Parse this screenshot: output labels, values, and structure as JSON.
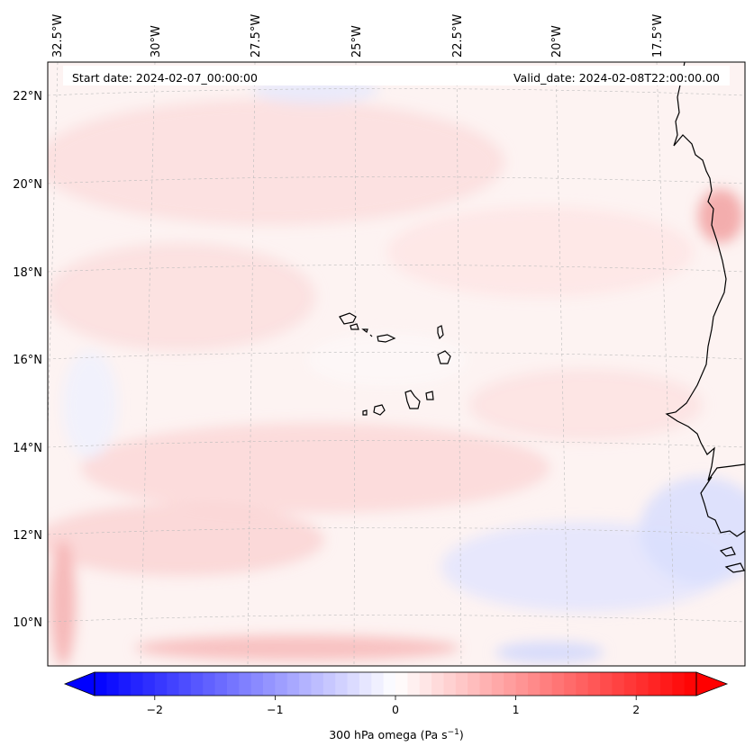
{
  "map": {
    "start_date": "Start date: 2024-02-07_00:00:00",
    "valid_date": "Valid_date: 2024-02-08T22:00:00.00",
    "lon_labels": [
      "32.5°W",
      "30°W",
      "27.5°W",
      "25°W",
      "22.5°W",
      "20°W",
      "17.5°W"
    ],
    "lat_labels": [
      "22°N",
      "20°N",
      "18°N",
      "16°N",
      "14°N",
      "12°N",
      "10°N"
    ]
  },
  "colorbar": {
    "tick_labels": [
      "−2",
      "−1",
      "0",
      "1",
      "2"
    ],
    "tick_values": [
      -2,
      -1,
      0,
      1,
      2
    ],
    "range": [
      -2.5,
      2.5
    ],
    "label_main": "300 hPa omega (Pa s",
    "label_sup": "−1",
    "label_end": ")",
    "colors": {
      "neg": "#0000ff",
      "zero": "#ffffff",
      "pos": "#ff0000"
    }
  }
}
